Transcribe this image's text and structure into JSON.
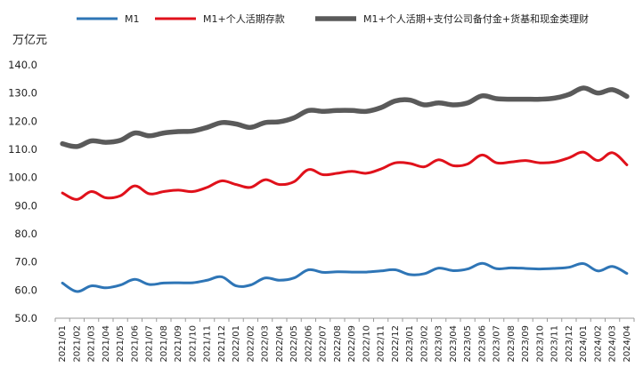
{
  "chart_data": {
    "type": "line",
    "ylabel": "万亿元",
    "ylim": [
      50,
      140
    ],
    "yticks": [
      50,
      60,
      70,
      80,
      90,
      100,
      110,
      120,
      130,
      140
    ],
    "ytick_labels": [
      "50.0",
      "60.0",
      "70.0",
      "80.0",
      "90.0",
      "100.0",
      "110.0",
      "120.0",
      "130.0",
      "140.0"
    ],
    "grid": false,
    "legend_position": "top",
    "categories": [
      "2021/01",
      "2021/02",
      "2021/03",
      "2021/04",
      "2021/05",
      "2021/06",
      "2021/07",
      "2021/08",
      "2021/09",
      "2021/10",
      "2021/11",
      "2021/12",
      "2022/01",
      "2022/02",
      "2022/03",
      "2022/04",
      "2022/05",
      "2022/06",
      "2022/07",
      "2022/08",
      "2022/09",
      "2022/10",
      "2022/11",
      "2022/12",
      "2023/01",
      "2023/02",
      "2023/03",
      "2023/04",
      "2023/05",
      "2023/06",
      "2023/07",
      "2023/08",
      "2023/09",
      "2023/10",
      "2023/11",
      "2023/12",
      "2024/01",
      "2024/02",
      "2024/03",
      "2024/04"
    ],
    "series": [
      {
        "name": "M1",
        "color": "#2e75b6",
        "values": [
          62.5,
          59.5,
          61.5,
          60.8,
          61.8,
          63.8,
          62.0,
          62.5,
          62.6,
          62.6,
          63.5,
          64.7,
          61.5,
          61.8,
          64.3,
          63.5,
          64.3,
          67.2,
          66.3,
          66.5,
          66.4,
          66.4,
          66.8,
          67.2,
          65.5,
          65.8,
          67.8,
          66.9,
          67.5,
          69.5,
          67.6,
          67.9,
          67.7,
          67.5,
          67.7,
          68.1,
          69.4,
          66.8,
          68.4,
          65.9
        ]
      },
      {
        "name": "M1+个人活期存款",
        "color": "#e0111b",
        "values": [
          94.5,
          92.2,
          95.0,
          92.8,
          93.5,
          97.0,
          94.2,
          95.0,
          95.5,
          95.0,
          96.5,
          98.8,
          97.5,
          96.5,
          99.2,
          97.5,
          98.5,
          102.8,
          101.0,
          101.5,
          102.2,
          101.5,
          103.0,
          105.2,
          105.0,
          103.8,
          106.3,
          104.2,
          104.8,
          108.0,
          105.2,
          105.5,
          106.0,
          105.2,
          105.5,
          107.0,
          109.0,
          106.0,
          108.8,
          104.5
        ]
      },
      {
        "name": "M1+个人活期+支付公司备付金+货基和现金类理财",
        "color": "#5a5a5a",
        "values": [
          112.0,
          111.0,
          113.0,
          112.5,
          113.2,
          115.8,
          114.8,
          115.8,
          116.3,
          116.5,
          117.8,
          119.5,
          119.0,
          117.8,
          119.5,
          119.8,
          121.2,
          123.8,
          123.5,
          123.8,
          123.8,
          123.5,
          124.8,
          127.2,
          127.5,
          125.8,
          126.5,
          125.8,
          126.5,
          129.0,
          128.0,
          127.8,
          127.8,
          127.8,
          128.2,
          129.5,
          131.8,
          130.0,
          131.2,
          128.8
        ]
      }
    ]
  }
}
